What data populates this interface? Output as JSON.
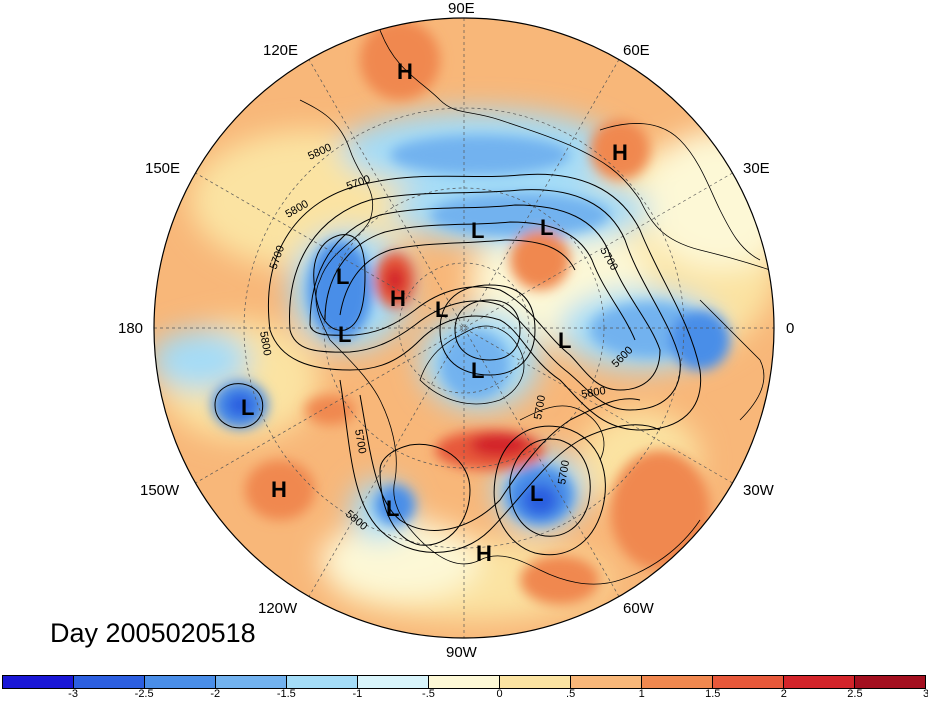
{
  "chart_data": {
    "type": "contour-map",
    "projection": "north-polar-stereographic",
    "title": "Day 2005020518",
    "longitude_labels": [
      "90E",
      "60E",
      "30E",
      "0",
      "30W",
      "60W",
      "90W",
      "120W",
      "150W",
      "180",
      "150E",
      "120E"
    ],
    "contour_labels": [
      "5700",
      "5800",
      "5700",
      "5700",
      "5800",
      "5800",
      "5600",
      "5700",
      "5800",
      "5700",
      "5800",
      "5700"
    ],
    "highs": [
      "H",
      "H",
      "H",
      "H",
      "H"
    ],
    "lows": [
      "L",
      "L",
      "L",
      "L",
      "L",
      "L",
      "L",
      "L",
      "L",
      "L"
    ],
    "colorbar": {
      "tick_labels": [
        "-3",
        "-2.5",
        "-2",
        "-1.5",
        "-1",
        "-.5",
        "0",
        ".5",
        "1",
        "1.5",
        "2",
        "2.5",
        "3"
      ],
      "colors": [
        "#1a17d6",
        "#2c5fe0",
        "#4a8ee8",
        "#72b2ef",
        "#a4dcf7",
        "#d8f4fb",
        "#fdf8d6",
        "#fbe3a2",
        "#f8b779",
        "#f0884f",
        "#e7583a",
        "#d3242a",
        "#a30f1f"
      ]
    }
  }
}
